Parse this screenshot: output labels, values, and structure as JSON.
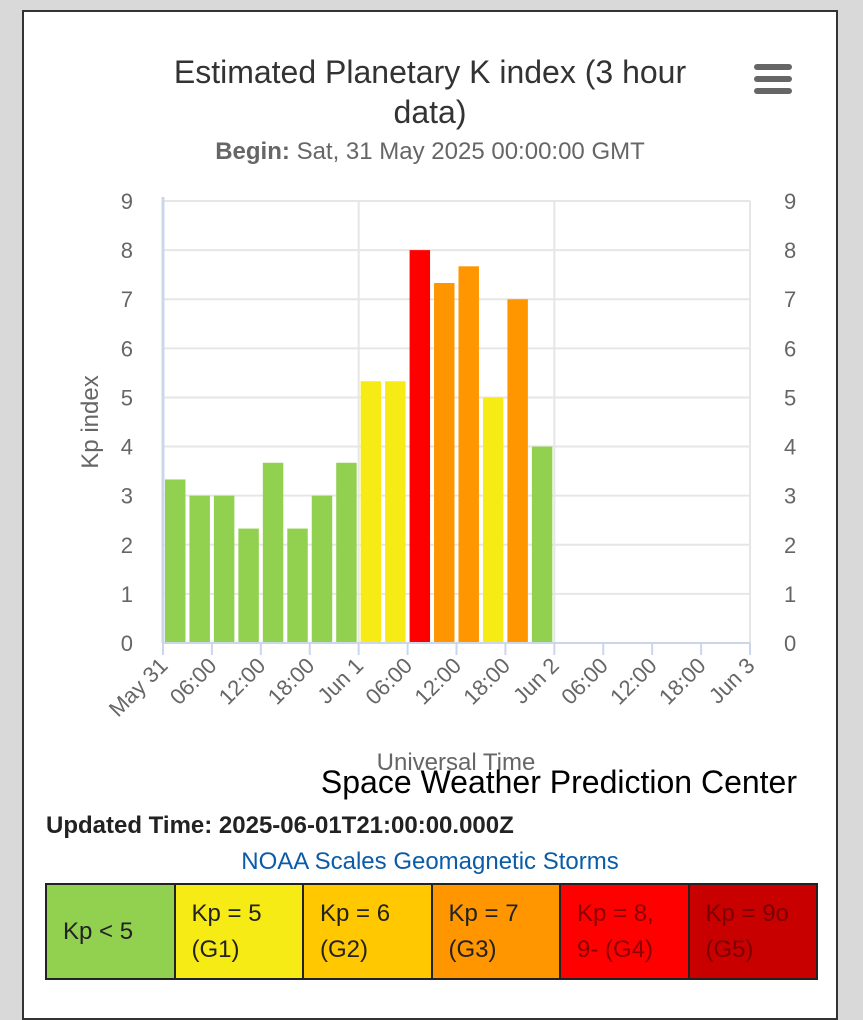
{
  "chart_data": {
    "type": "bar",
    "title": "Estimated Planetary K index (3 hour data)",
    "subtitle_label": "Begin:",
    "subtitle_value": "Sat, 31 May 2025 00:00:00 GMT",
    "xlabel": "Universal Time",
    "ylabel": "Kp index",
    "ylim": [
      0,
      9
    ],
    "xlim_hours": [
      0,
      72
    ],
    "x_tick_labels": [
      "May 31",
      "06:00",
      "12:00",
      "18:00",
      "Jun 1",
      "06:00",
      "12:00",
      "18:00",
      "Jun 2",
      "06:00",
      "12:00",
      "18:00",
      "Jun 3"
    ],
    "y_ticks": [
      0,
      1,
      2,
      3,
      4,
      5,
      6,
      7,
      8,
      9
    ],
    "bar_width_hours": 3,
    "categories": [
      "2025-05-31 00:00",
      "2025-05-31 03:00",
      "2025-05-31 06:00",
      "2025-05-31 09:00",
      "2025-05-31 12:00",
      "2025-05-31 15:00",
      "2025-05-31 18:00",
      "2025-05-31 21:00",
      "2025-06-01 00:00",
      "2025-06-01 03:00",
      "2025-06-01 06:00",
      "2025-06-01 09:00",
      "2025-06-01 12:00",
      "2025-06-01 15:00",
      "2025-06-01 18:00",
      "2025-06-01 21:00"
    ],
    "values": [
      3.33,
      3.0,
      3.0,
      2.33,
      3.67,
      2.33,
      3.0,
      3.67,
      5.33,
      5.33,
      8.0,
      7.33,
      7.67,
      5.0,
      7.0,
      4.0
    ],
    "grid": true,
    "legend": "none"
  },
  "colors": {
    "kp_below_5": "#92d050",
    "kp_5": "#f6eb14",
    "kp_6": "#ffc800",
    "kp_7": "#ff9600",
    "kp_8_9minus": "#ff0000",
    "kp_9o": "#c80000"
  },
  "credit": "Space Weather Prediction Center",
  "updated_time": "Updated Time: 2025-06-01T21:00:00.000Z",
  "noaa_link": "NOAA Scales Geomagnetic Storms",
  "scale": [
    {
      "label": "Kp < 5",
      "color": "#92d050",
      "text_color": "#222222"
    },
    {
      "label": "Kp = 5 (G1)",
      "color": "#f6eb14",
      "text_color": "#222222"
    },
    {
      "label": "Kp = 6 (G2)",
      "color": "#ffc800",
      "text_color": "#222222"
    },
    {
      "label": "Kp = 7 (G3)",
      "color": "#ff9600",
      "text_color": "#222222"
    },
    {
      "label": "Kp = 8, 9- (G4)",
      "color": "#ff0000",
      "text_color": "#8a0000"
    },
    {
      "label": "Kp = 9o (G5)",
      "color": "#c80000",
      "text_color": "#7a0000"
    }
  ]
}
